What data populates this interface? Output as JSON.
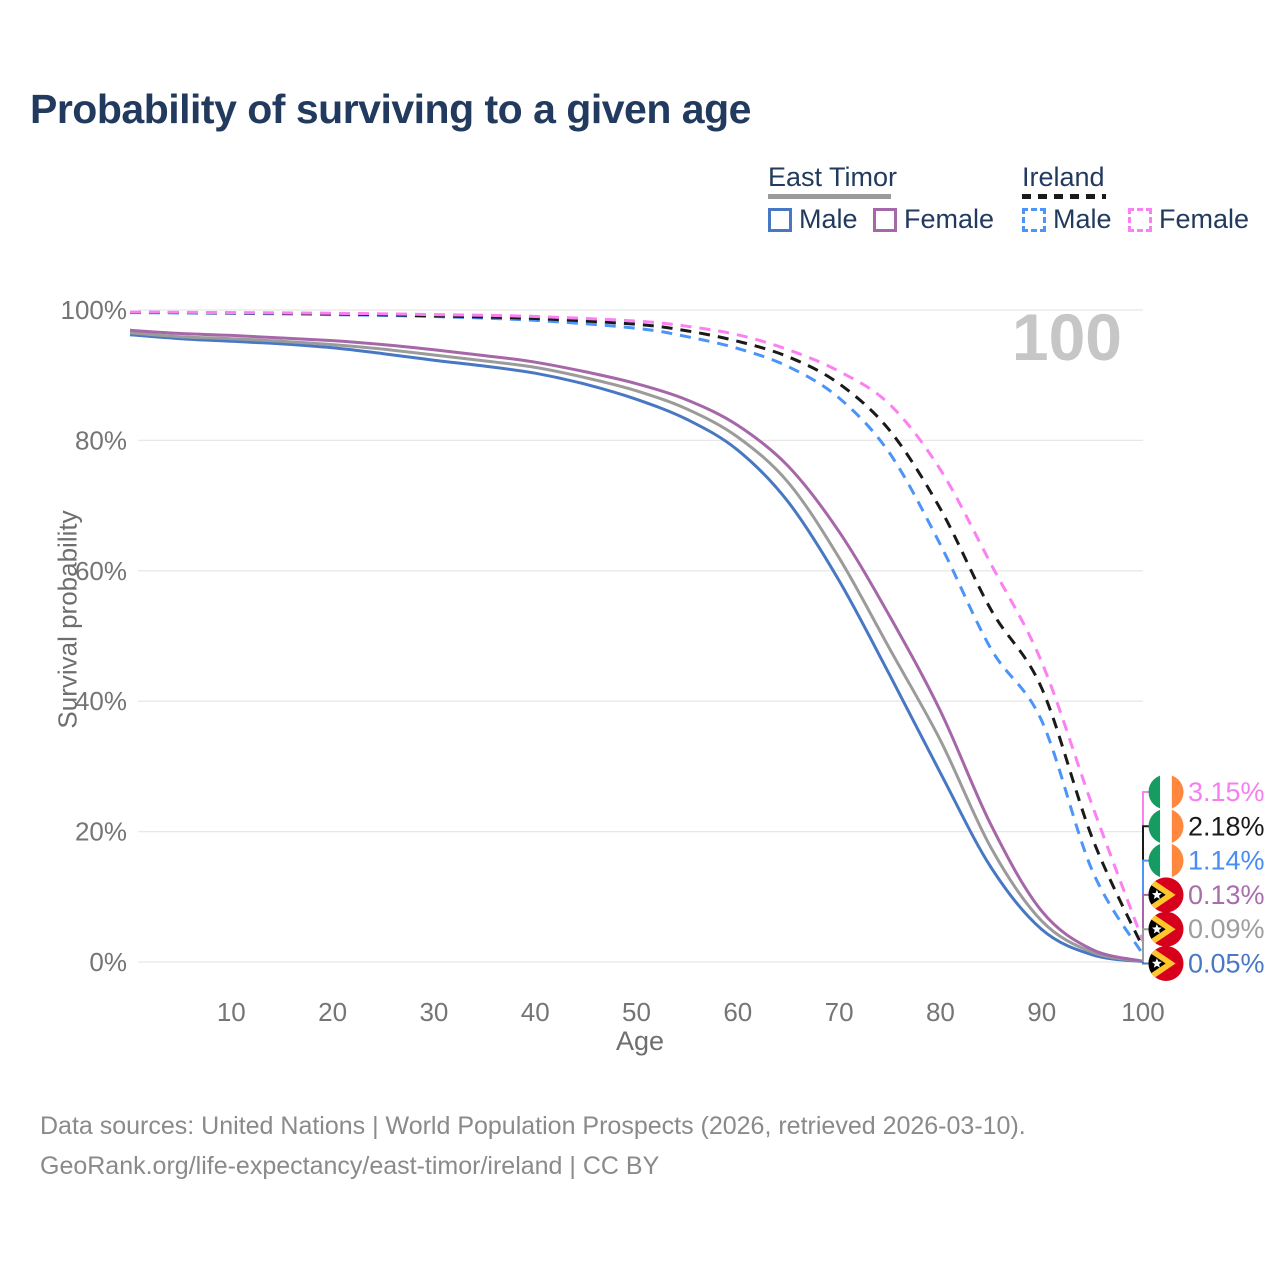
{
  "title": "Probability of surviving to a given age",
  "watermark_age": "100",
  "legend": {
    "groups": [
      {
        "label": "East Timor",
        "line": "solid",
        "underline_color": "#9b9b9b",
        "items": [
          {
            "label": "Male",
            "color": "#4878c4"
          },
          {
            "label": "Female",
            "color": "#a667a9"
          }
        ]
      },
      {
        "label": "Ireland",
        "line": "dashed",
        "underline_color": "#1a1a1a",
        "items": [
          {
            "label": "Male",
            "color": "#4b94f8"
          },
          {
            "label": "Female",
            "color": "#fb80f3"
          }
        ]
      }
    ]
  },
  "chart_data": {
    "type": "line",
    "title": "Probability of surviving to a given age",
    "xlabel": "Age",
    "ylabel": "Survival probability",
    "xlim": [
      0,
      100
    ],
    "ylim": [
      0,
      100
    ],
    "grid": "horizontal-only",
    "x_ticks": [
      10,
      20,
      30,
      40,
      50,
      60,
      70,
      80,
      90,
      100
    ],
    "y_ticks": [
      {
        "value": 0,
        "label": "0%"
      },
      {
        "value": 20,
        "label": "20%"
      },
      {
        "value": 40,
        "label": "40%"
      },
      {
        "value": 60,
        "label": "60%"
      },
      {
        "value": 80,
        "label": "80%"
      },
      {
        "value": 100,
        "label": "100%"
      }
    ],
    "series": [
      {
        "id": "east-timor-male",
        "country": "East Timor",
        "sex": "Male",
        "line": "solid",
        "color": "#4878c4",
        "end_label": {
          "text": "0.05%",
          "color": "#4979c4",
          "flag": "east-timor",
          "rank": 5
        },
        "points": [
          [
            0,
            96.2
          ],
          [
            5,
            95.6
          ],
          [
            10,
            95.2
          ],
          [
            15,
            94.8
          ],
          [
            20,
            94.2
          ],
          [
            25,
            93.3
          ],
          [
            30,
            92.3
          ],
          [
            35,
            91.4
          ],
          [
            40,
            90.3
          ],
          [
            45,
            88.6
          ],
          [
            50,
            86.3
          ],
          [
            55,
            83.2
          ],
          [
            60,
            78.5
          ],
          [
            65,
            70.5
          ],
          [
            70,
            58.5
          ],
          [
            75,
            44
          ],
          [
            80,
            29
          ],
          [
            85,
            14.5
          ],
          [
            90,
            5
          ],
          [
            95,
            1.1
          ],
          [
            100,
            0.05
          ]
        ]
      },
      {
        "id": "east-timor-both",
        "country": "East Timor",
        "sex": "Both sexes",
        "line": "solid",
        "color": "#9b9b9b",
        "end_label": {
          "text": "0.09%",
          "color": "#9e9e9e",
          "flag": "east-timor",
          "rank": 4
        },
        "points": [
          [
            0,
            96.5
          ],
          [
            5,
            95.9
          ],
          [
            10,
            95.6
          ],
          [
            15,
            95.2
          ],
          [
            20,
            94.7
          ],
          [
            25,
            94.0
          ],
          [
            30,
            93.1
          ],
          [
            35,
            92.2
          ],
          [
            40,
            91.2
          ],
          [
            45,
            89.6
          ],
          [
            50,
            87.6
          ],
          [
            55,
            84.8
          ],
          [
            60,
            80.5
          ],
          [
            65,
            73.5
          ],
          [
            70,
            62
          ],
          [
            75,
            48
          ],
          [
            80,
            34
          ],
          [
            85,
            17.5
          ],
          [
            90,
            6.3
          ],
          [
            95,
            1.5
          ],
          [
            100,
            0.09
          ]
        ]
      },
      {
        "id": "east-timor-female",
        "country": "East Timor",
        "sex": "Female",
        "line": "solid",
        "color": "#a667a9",
        "end_label": {
          "text": "0.13%",
          "color": "#a96dac",
          "flag": "east-timor",
          "rank": 3
        },
        "points": [
          [
            0,
            96.9
          ],
          [
            5,
            96.4
          ],
          [
            10,
            96.1
          ],
          [
            15,
            95.7
          ],
          [
            20,
            95.3
          ],
          [
            25,
            94.7
          ],
          [
            30,
            93.9
          ],
          [
            35,
            93.0
          ],
          [
            40,
            92.0
          ],
          [
            45,
            90.5
          ],
          [
            50,
            88.7
          ],
          [
            55,
            86.2
          ],
          [
            60,
            82.3
          ],
          [
            65,
            76.0
          ],
          [
            70,
            66.0
          ],
          [
            75,
            53
          ],
          [
            80,
            38.5
          ],
          [
            85,
            21
          ],
          [
            90,
            7.8
          ],
          [
            95,
            1.9
          ],
          [
            100,
            0.13
          ]
        ]
      },
      {
        "id": "ireland-male",
        "country": "Ireland",
        "sex": "Male",
        "line": "dashed",
        "color": "#4b94f8",
        "end_label": {
          "text": "1.14%",
          "color": "#488cf5",
          "flag": "ireland",
          "rank": 2
        },
        "points": [
          [
            0,
            99.6
          ],
          [
            10,
            99.5
          ],
          [
            20,
            99.3
          ],
          [
            30,
            99.0
          ],
          [
            40,
            98.4
          ],
          [
            50,
            97.2
          ],
          [
            55,
            95.9
          ],
          [
            60,
            94.1
          ],
          [
            65,
            91.3
          ],
          [
            70,
            86.5
          ],
          [
            75,
            78
          ],
          [
            80,
            64
          ],
          [
            85,
            48
          ],
          [
            90,
            37
          ],
          [
            95,
            14
          ],
          [
            100,
            1.14
          ]
        ]
      },
      {
        "id": "ireland-both",
        "country": "Ireland",
        "sex": "Both sexes",
        "line": "dashed",
        "color": "#1a1a1a",
        "end_label": {
          "text": "2.18%",
          "color": "#1a1a1a",
          "flag": "ireland",
          "rank": 1
        },
        "points": [
          [
            0,
            99.65
          ],
          [
            10,
            99.55
          ],
          [
            20,
            99.4
          ],
          [
            30,
            99.1
          ],
          [
            40,
            98.7
          ],
          [
            50,
            97.8
          ],
          [
            55,
            96.8
          ],
          [
            60,
            95.2
          ],
          [
            65,
            92.8
          ],
          [
            70,
            88.7
          ],
          [
            75,
            81.5
          ],
          [
            80,
            69.5
          ],
          [
            85,
            54
          ],
          [
            90,
            42
          ],
          [
            95,
            19
          ],
          [
            100,
            2.18
          ]
        ]
      },
      {
        "id": "ireland-female",
        "country": "Ireland",
        "sex": "Female",
        "line": "dashed",
        "color": "#fb80f3",
        "end_label": {
          "text": "3.15%",
          "color": "#f77ef0",
          "flag": "ireland",
          "rank": 0
        },
        "points": [
          [
            0,
            99.7
          ],
          [
            10,
            99.6
          ],
          [
            20,
            99.5
          ],
          [
            30,
            99.3
          ],
          [
            40,
            99.0
          ],
          [
            50,
            98.3
          ],
          [
            55,
            97.5
          ],
          [
            60,
            96.2
          ],
          [
            65,
            93.9
          ],
          [
            70,
            90.6
          ],
          [
            75,
            85.5
          ],
          [
            80,
            75.5
          ],
          [
            85,
            61
          ],
          [
            90,
            46
          ],
          [
            95,
            24
          ],
          [
            100,
            3.15
          ]
        ]
      }
    ]
  },
  "footer": {
    "line1": "Data sources: United Nations | World Population Prospects (2026, retrieved 2026-03-10).",
    "line2": "GeoRank.org/life-expectancy/east-timor/ireland | CC BY"
  }
}
